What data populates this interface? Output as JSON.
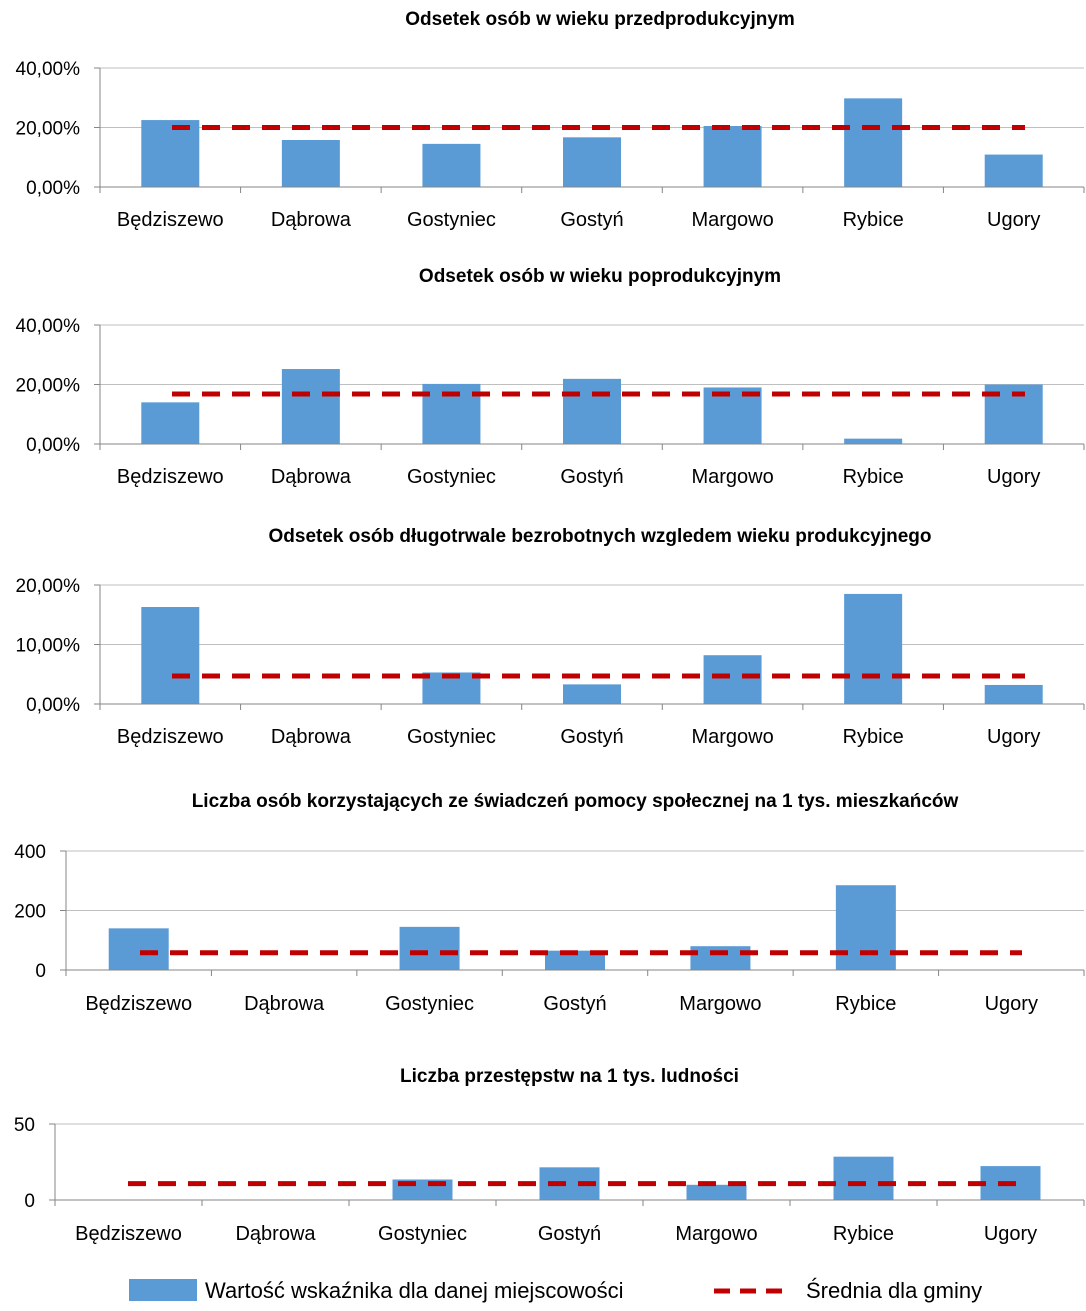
{
  "chart_data": [
    {
      "type": "bar",
      "title": "Odsetek osób w wieku przedprodukcyjnym",
      "categories": [
        "Będziszewo",
        "Dąbrowa",
        "Gostyniec",
        "Gostyń",
        "Margowo",
        "Rybice",
        "Ugory"
      ],
      "series": [
        {
          "name": "Wartość wskaźnika dla danej miejscowości",
          "kind": "bar",
          "color": "#5B9BD5",
          "values": [
            22.5,
            15.8,
            14.5,
            16.7,
            20.5,
            29.8,
            10.9
          ]
        },
        {
          "name": "Średnia dla gminy",
          "kind": "line",
          "style": "dashed",
          "color": "#C00000",
          "values": [
            20.0,
            20.0,
            20.0,
            20.0,
            20.0,
            20.0,
            20.0
          ]
        }
      ],
      "ylim": [
        0,
        40
      ],
      "yticks": [
        0,
        20,
        40
      ],
      "ytick_labels": [
        "0,00%",
        "20,00%",
        "40,00%"
      ],
      "grid": true,
      "legend": "bottom"
    },
    {
      "type": "bar",
      "title": "Odsetek osób w wieku poprodukcyjnym",
      "categories": [
        "Będziszewo",
        "Dąbrowa",
        "Gostyniec",
        "Gostyń",
        "Margowo",
        "Rybice",
        "Ugory"
      ],
      "series": [
        {
          "name": "Wartość wskaźnika dla danej miejscowości",
          "kind": "bar",
          "color": "#5B9BD5",
          "values": [
            14.0,
            25.2,
            20.2,
            21.9,
            19.0,
            1.8,
            20.0
          ]
        },
        {
          "name": "Średnia dla gminy",
          "kind": "line",
          "style": "dashed",
          "color": "#C00000",
          "values": [
            16.8,
            16.8,
            16.8,
            16.8,
            16.8,
            16.8,
            16.8
          ]
        }
      ],
      "ylim": [
        0,
        40
      ],
      "yticks": [
        0,
        20,
        40
      ],
      "ytick_labels": [
        "0,00%",
        "20,00%",
        "40,00%"
      ],
      "grid": true,
      "legend": "bottom"
    },
    {
      "type": "bar",
      "title": "Odsetek osób długotrwale bezrobotnych wzgledem wieku produkcyjnego",
      "categories": [
        "Będziszewo",
        "Dąbrowa",
        "Gostyniec",
        "Gostyń",
        "Margowo",
        "Rybice",
        "Ugory"
      ],
      "series": [
        {
          "name": "Wartość wskaźnika dla danej miejscowości",
          "kind": "bar",
          "color": "#5B9BD5",
          "values": [
            16.3,
            0,
            5.3,
            3.3,
            8.2,
            18.5,
            3.2
          ]
        },
        {
          "name": "Średnia dla gminy",
          "kind": "line",
          "style": "dashed",
          "color": "#C00000",
          "values": [
            4.7,
            4.7,
            4.7,
            4.7,
            4.7,
            4.7,
            4.7
          ]
        }
      ],
      "ylim": [
        0,
        20
      ],
      "yticks": [
        0,
        10,
        20
      ],
      "ytick_labels": [
        "0,00%",
        "10,00%",
        "20,00%"
      ],
      "grid": true,
      "legend": "bottom"
    },
    {
      "type": "bar",
      "title": "Liczba osób korzystających ze świadczeń pomocy społecznej na 1 tys. mieszkańców",
      "categories": [
        "Będziszewo",
        "Dąbrowa",
        "Gostyniec",
        "Gostyń",
        "Margowo",
        "Rybice",
        "Ugory"
      ],
      "series": [
        {
          "name": "Wartość wskaźnika dla danej miejscowości",
          "kind": "bar",
          "color": "#5B9BD5",
          "values": [
            140,
            0,
            145,
            65,
            80,
            285,
            0
          ]
        },
        {
          "name": "Średnia dla gminy",
          "kind": "line",
          "style": "dashed",
          "color": "#C00000",
          "values": [
            58,
            58,
            58,
            58,
            58,
            58,
            58
          ]
        }
      ],
      "ylim": [
        0,
        400
      ],
      "yticks": [
        0,
        200,
        400
      ],
      "ytick_labels": [
        "0",
        "200",
        "400"
      ],
      "grid": true,
      "legend": "bottom"
    },
    {
      "type": "bar",
      "title": "Liczba przestępstw na 1 tys. ludności",
      "categories": [
        "Będziszewo",
        "Dąbrowa",
        "Gostyniec",
        "Gostyń",
        "Margowo",
        "Rybice",
        "Ugory"
      ],
      "series": [
        {
          "name": "Wartość wskaźnika dla danej miejscowości",
          "kind": "bar",
          "color": "#5B9BD5",
          "values": [
            0,
            0,
            13.5,
            21.5,
            10.0,
            28.5,
            22.3
          ]
        },
        {
          "name": "Średnia dla gminy",
          "kind": "line",
          "style": "dashed",
          "color": "#C00000",
          "values": [
            10.8,
            10.8,
            10.8,
            10.8,
            10.8,
            10.8,
            10.8
          ]
        }
      ],
      "ylim": [
        0,
        50
      ],
      "yticks": [
        0,
        50
      ],
      "ytick_labels": [
        "0",
        "50"
      ],
      "grid": true,
      "legend": "bottom"
    }
  ],
  "legend": {
    "bar_label": "Wartość wskaźnika dla danej miejscowości",
    "line_label": "Średnia dla gminy",
    "bar_color": "#5B9BD5",
    "line_color": "#C00000"
  }
}
